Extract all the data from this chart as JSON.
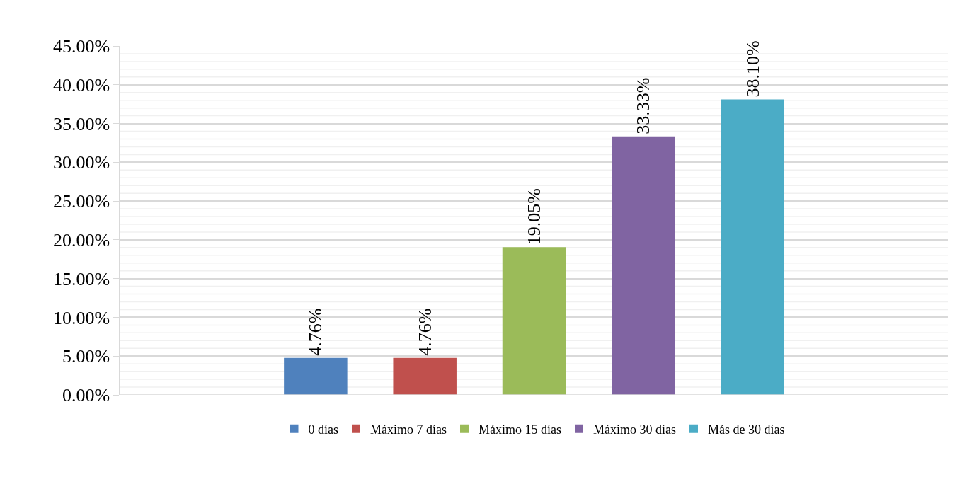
{
  "chart_data": {
    "type": "bar",
    "categories": [
      null
    ],
    "series": [
      {
        "name": "0 días",
        "color": "#4f81bd",
        "values": [
          4.76
        ],
        "value_labels": [
          "4.76%"
        ]
      },
      {
        "name": "Máximo 7 días",
        "color": "#c0504d",
        "values": [
          4.76
        ],
        "value_labels": [
          "4.76%"
        ]
      },
      {
        "name": "Máximo 15 días",
        "color": "#9bbb59",
        "values": [
          19.05
        ],
        "value_labels": [
          "19.05%"
        ]
      },
      {
        "name": "Máximo 30 días",
        "color": "#8064a2",
        "values": [
          33.33
        ],
        "value_labels": [
          "33.33%"
        ]
      },
      {
        "name": "Más de 30 días",
        "color": "#4bacc6",
        "values": [
          38.1
        ],
        "value_labels": [
          "38.10%"
        ]
      }
    ],
    "ylim": [
      0,
      45
    ],
    "yticks": [
      {
        "value": 0,
        "label": "0.00%"
      },
      {
        "value": 1,
        "label": null
      },
      {
        "value": 2,
        "label": null
      },
      {
        "value": 3,
        "label": null
      },
      {
        "value": 4,
        "label": null
      },
      {
        "value": 5,
        "label": "5.00%"
      },
      {
        "value": 6,
        "label": null
      },
      {
        "value": 7,
        "label": null
      },
      {
        "value": 8,
        "label": null
      },
      {
        "value": 9,
        "label": null
      },
      {
        "value": 10,
        "label": "10.00%"
      },
      {
        "value": 11,
        "label": null
      },
      {
        "value": 12,
        "label": null
      },
      {
        "value": 13,
        "label": null
      },
      {
        "value": 14,
        "label": null
      },
      {
        "value": 15,
        "label": "15.00%"
      },
      {
        "value": 16,
        "label": null
      },
      {
        "value": 17,
        "label": null
      },
      {
        "value": 18,
        "label": null
      },
      {
        "value": 19,
        "label": null
      },
      {
        "value": 20,
        "label": "20.00%"
      },
      {
        "value": 21,
        "label": null
      },
      {
        "value": 22,
        "label": null
      },
      {
        "value": 23,
        "label": null
      },
      {
        "value": 24,
        "label": null
      },
      {
        "value": 25,
        "label": "25.00%"
      },
      {
        "value": 26,
        "label": null
      },
      {
        "value": 27,
        "label": null
      },
      {
        "value": 28,
        "label": null
      },
      {
        "value": 29,
        "label": null
      },
      {
        "value": 30,
        "label": "30.00%"
      },
      {
        "value": 31,
        "label": null
      },
      {
        "value": 32,
        "label": null
      },
      {
        "value": 33,
        "label": null
      },
      {
        "value": 34,
        "label": null
      },
      {
        "value": 35,
        "label": "35.00%"
      },
      {
        "value": 36,
        "label": null
      },
      {
        "value": 37,
        "label": null
      },
      {
        "value": 38,
        "label": null
      },
      {
        "value": 39,
        "label": null
      },
      {
        "value": 40,
        "label": "40.00%"
      },
      {
        "value": 41,
        "label": null
      },
      {
        "value": 42,
        "label": null
      },
      {
        "value": 43,
        "label": null
      },
      {
        "value": 44,
        "label": null
      },
      {
        "value": 45,
        "label": "45.00%"
      }
    ],
    "grid": "y",
    "legend": "bottom"
  }
}
